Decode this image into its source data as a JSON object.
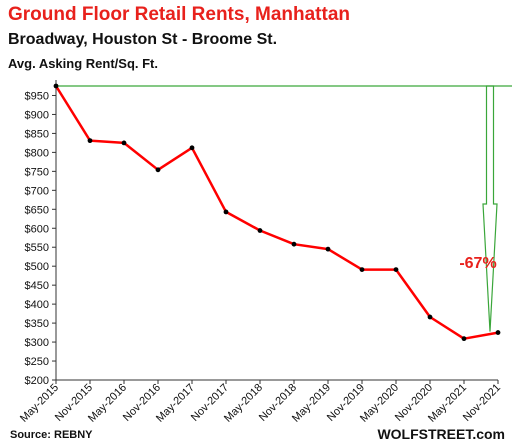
{
  "header": {
    "title": "Ground  Floor Retail Rents, Manhattan",
    "subtitle": "Broadway, Houston St - Broome St.",
    "ylabel": "Avg. Asking Rent/Sq. Ft."
  },
  "footer": {
    "source": "Source: REBNY",
    "brand": "WOLFSTREET.com"
  },
  "chart_data": {
    "type": "line",
    "title": "Ground  Floor Retail Rents, Manhattan",
    "subtitle": "Broadway, Houston St - Broome St.",
    "ylabel": "Avg. Asking Rent/Sq. Ft.",
    "xlabel": "",
    "categories": [
      "May-2015",
      "Nov-2015",
      "May-2016",
      "Nov-2016",
      "May-2017",
      "Nov-2017",
      "May-2018",
      "Nov-2018",
      "May-2019",
      "Nov-2019",
      "May-2020",
      "Nov-2020",
      "May-2021",
      "Nov-2021"
    ],
    "series": [
      {
        "values": [
          975,
          831,
          825,
          754,
          812,
          643,
          594,
          558,
          545,
          491,
          491,
          366,
          309,
          325
        ]
      }
    ],
    "ylim": [
      200,
      975
    ],
    "yticks": [
      "$200",
      "$250",
      "$300",
      "$350",
      "$400",
      "$450",
      "$500",
      "$550",
      "$600",
      "$650",
      "$700",
      "$750",
      "$800",
      "$850",
      "$900",
      "$950"
    ],
    "ytick_values": [
      200,
      250,
      300,
      350,
      400,
      450,
      500,
      550,
      600,
      650,
      700,
      750,
      800,
      850,
      900,
      950
    ],
    "grid": false,
    "line_color": "#ff0000",
    "annotation": {
      "text": "-67%",
      "color": "#e8211c",
      "arrow_color": "#3aa63a"
    }
  }
}
